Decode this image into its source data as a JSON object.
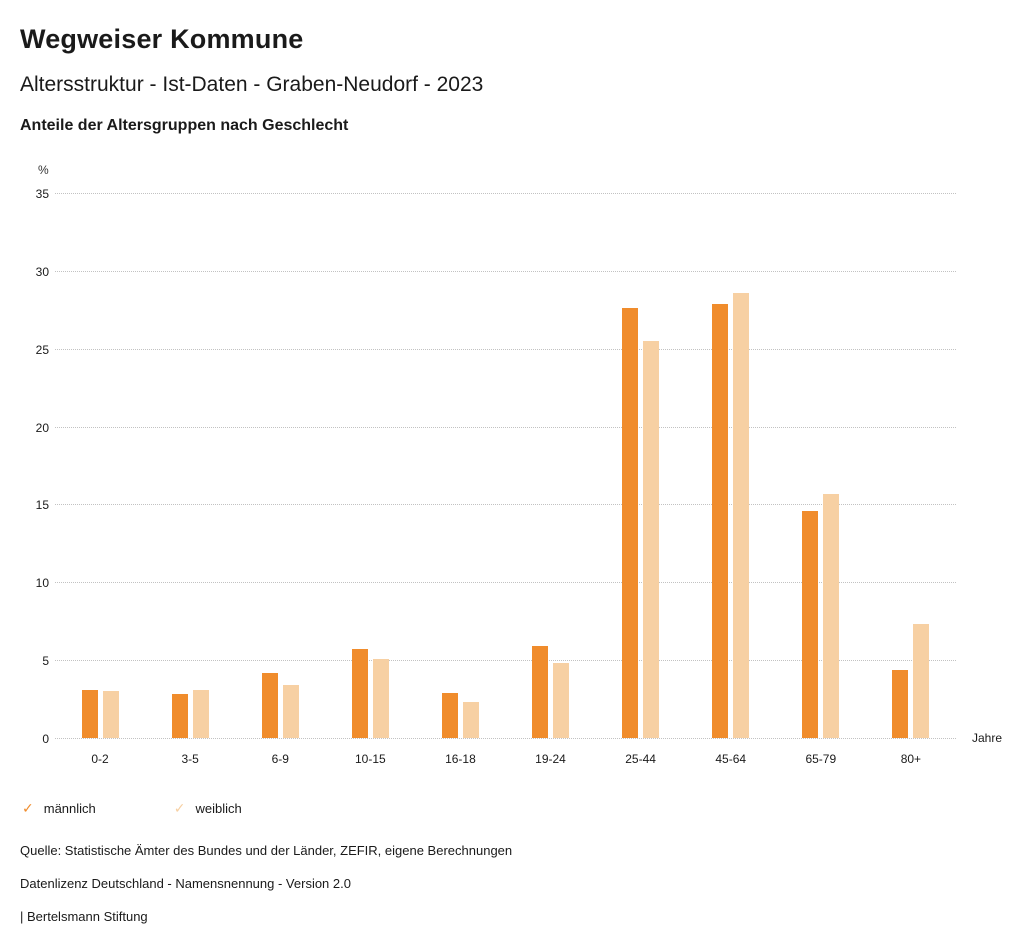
{
  "header": {
    "title": "Wegweiser Kommune",
    "subtitle": "Altersstruktur - Ist-Daten - Graben-Neudorf - 2023",
    "chart_heading": "Anteile der Altersgruppen nach Geschlecht"
  },
  "chart_data": {
    "type": "bar",
    "title": "Anteile der Altersgruppen nach Geschlecht",
    "categories": [
      "0-2",
      "3-5",
      "6-9",
      "10-15",
      "16-18",
      "19-24",
      "25-44",
      "45-64",
      "65-79",
      "80+"
    ],
    "series": [
      {
        "name": "männlich",
        "color": "#f08c2c",
        "values": [
          3.1,
          2.8,
          4.2,
          5.7,
          2.9,
          5.9,
          27.6,
          27.9,
          14.6,
          4.4
        ]
      },
      {
        "name": "weiblich",
        "color": "#f7d0a3",
        "values": [
          3.0,
          3.1,
          3.4,
          5.1,
          2.3,
          4.8,
          25.5,
          28.6,
          15.7,
          7.3
        ]
      }
    ],
    "ylabel": "%",
    "xlabel": "Jahre",
    "ylim": [
      0,
      35
    ],
    "ytick_step": 5,
    "grid": true,
    "grid_style": "dotted",
    "legend_position": "bottom"
  },
  "legend": {
    "check_icon": "✓",
    "items": [
      {
        "label": "männlich",
        "color": "#f08c2c"
      },
      {
        "label": "weiblich",
        "color": "#f7d0a3"
      }
    ]
  },
  "footer": {
    "source": "Quelle: Statistische Ämter des Bundes und der Länder, ZEFIR, eigene Berechnungen",
    "license": "Datenlizenz Deutschland - Namensnennung - Version 2.0",
    "attribution": "| Bertelsmann Stiftung"
  }
}
